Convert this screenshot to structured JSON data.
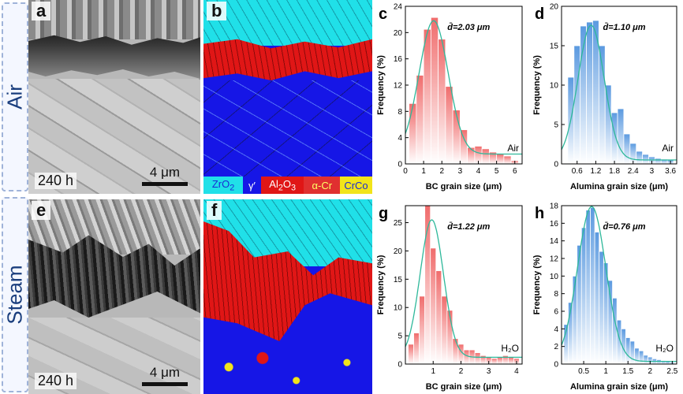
{
  "rows": [
    {
      "label": "Air"
    },
    {
      "label": "Steam"
    }
  ],
  "panels": {
    "a": {
      "label": "a",
      "hours": "240 h",
      "scale": "4 μm"
    },
    "b": {
      "label": "b"
    },
    "e": {
      "label": "e",
      "hours": "240 h",
      "scale": "4 μm"
    },
    "f": {
      "label": "f"
    }
  },
  "legend": {
    "items": [
      {
        "html": "ZrO<sub>2</sub>",
        "color": "#20e0e8",
        "text_color": "#1a2bd4"
      },
      {
        "html": "γ′",
        "color": "#1616e6",
        "text_color": "#ffffff"
      },
      {
        "html": "Al<sub>2</sub>O<sub>3</sub>",
        "color": "#e01616",
        "text_color": "#ffffff"
      },
      {
        "html": "α-Cr",
        "color": "#e03030",
        "text_color": "#ffff66"
      },
      {
        "html": "CrCo",
        "color": "#f2e41a",
        "text_color": "#1a2bd4"
      }
    ]
  },
  "colors": {
    "red_bar": "#f06c6c",
    "blue_bar": "#5b9ae0",
    "fit_line": "#2eb89a",
    "zro2": "#20e0e8",
    "gamma": "#1616e6",
    "alumina": "#e01616",
    "crco": "#f2e41a"
  },
  "chart_data": [
    {
      "id": "c",
      "panel_label": "c",
      "type": "bar",
      "style": "red",
      "mean_label": "d̄=2.03 μm",
      "env_label": "Air",
      "xlabel": "BC grain size (μm)",
      "ylabel": "Frequency (%)",
      "xlim": [
        0,
        6.4
      ],
      "ylim": [
        0,
        24
      ],
      "xticks": [
        0,
        1,
        2,
        3,
        4,
        5,
        6
      ],
      "yticks": [
        0,
        4,
        8,
        12,
        16,
        20,
        24
      ],
      "bin_width": 0.4,
      "bin_centers": [
        0.4,
        0.8,
        1.2,
        1.6,
        2.0,
        2.4,
        2.8,
        3.2,
        3.6,
        4.0,
        4.4,
        4.8,
        5.2,
        5.6,
        6.0
      ],
      "values": [
        9.2,
        13.5,
        20.5,
        22.3,
        19.0,
        11.8,
        8.2,
        5.2,
        2.5,
        2.7,
        2.3,
        1.8,
        1.5,
        1.2,
        0.5
      ],
      "fit": {
        "mu": 1.55,
        "sigma": 0.8,
        "peak": 21.8,
        "baseline": 1.5
      }
    },
    {
      "id": "d",
      "panel_label": "d",
      "type": "bar",
      "style": "blue",
      "mean_label": "d̄=1.10 μm",
      "env_label": "Air",
      "xlabel": "Alumina grain size (μm)",
      "ylabel": "Frequency (%)",
      "xlim": [
        0.1,
        3.8
      ],
      "ylim": [
        0,
        20
      ],
      "xticks": [
        0.6,
        1.2,
        1.8,
        2.4,
        3.0,
        3.6
      ],
      "yticks": [
        0,
        5,
        10,
        15,
        20
      ],
      "bin_width": 0.2,
      "bin_centers": [
        0.4,
        0.6,
        0.8,
        1.0,
        1.2,
        1.4,
        1.6,
        1.8,
        2.0,
        2.2,
        2.4,
        2.6,
        2.8,
        3.0,
        3.2,
        3.4,
        3.6
      ],
      "values": [
        11,
        15,
        17.5,
        18,
        18.2,
        15,
        10,
        6.5,
        7,
        3.8,
        2.6,
        1.6,
        1.2,
        0.9,
        0.7,
        0.6,
        0.5
      ],
      "fit": {
        "mu": 1.05,
        "sigma": 0.42,
        "peak": 17.6,
        "baseline": 0.5
      }
    },
    {
      "id": "g",
      "panel_label": "g",
      "type": "bar",
      "style": "red",
      "mean_label": "d̄=1.22 μm",
      "env_label": "H₂O",
      "xlabel": "BC grain size (μm)",
      "ylabel": "Frequency (%)",
      "xlim": [
        0,
        4.2
      ],
      "ylim": [
        0,
        28
      ],
      "xticks": [
        1,
        2,
        3,
        4
      ],
      "yticks": [
        0,
        5,
        10,
        15,
        20,
        25
      ],
      "bin_width": 0.2,
      "bin_centers": [
        0.2,
        0.4,
        0.6,
        0.8,
        1.0,
        1.2,
        1.4,
        1.6,
        1.8,
        2.0,
        2.2,
        2.4,
        2.6,
        2.8,
        3.0,
        3.2,
        3.4,
        3.6,
        3.8,
        4.0
      ],
      "values": [
        3.5,
        5.5,
        12,
        28,
        20.5,
        16.5,
        12,
        9.5,
        4.5,
        3.5,
        2.5,
        2.5,
        2,
        1.5,
        1.2,
        1,
        1.2,
        1.5,
        1.2,
        1
      ],
      "fit": {
        "mu": 0.95,
        "sigma": 0.42,
        "peak": 25.5,
        "baseline": 1.2
      }
    },
    {
      "id": "h",
      "panel_label": "h",
      "type": "bar",
      "style": "blue",
      "mean_label": "d̄=0.76 μm",
      "env_label": "H₂O",
      "xlabel": "Alumina grain size (μm)",
      "ylabel": "Frequency (%)",
      "xlim": [
        0,
        2.6
      ],
      "ylim": [
        0,
        18
      ],
      "xticks": [
        0.5,
        1.0,
        1.5,
        2.0,
        2.5
      ],
      "yticks": [
        0,
        2,
        4,
        6,
        8,
        10,
        12,
        14,
        16,
        18
      ],
      "bin_width": 0.1,
      "bin_centers": [
        0.1,
        0.2,
        0.3,
        0.4,
        0.5,
        0.6,
        0.7,
        0.8,
        0.9,
        1.0,
        1.1,
        1.2,
        1.3,
        1.4,
        1.5,
        1.6,
        1.7,
        1.8,
        1.9,
        2.0,
        2.1,
        2.2,
        2.3,
        2.4,
        2.5
      ],
      "values": [
        4.5,
        7,
        10,
        13.5,
        15.5,
        17.5,
        17.8,
        15,
        12.8,
        11.5,
        9.5,
        7.5,
        5,
        4,
        3,
        2.6,
        1.8,
        1.5,
        1,
        0.8,
        0.6,
        0.5,
        0.4,
        0.3,
        0.2
      ],
      "fit": {
        "mu": 0.68,
        "sigma": 0.32,
        "peak": 17.9,
        "baseline": 0.3
      }
    }
  ]
}
